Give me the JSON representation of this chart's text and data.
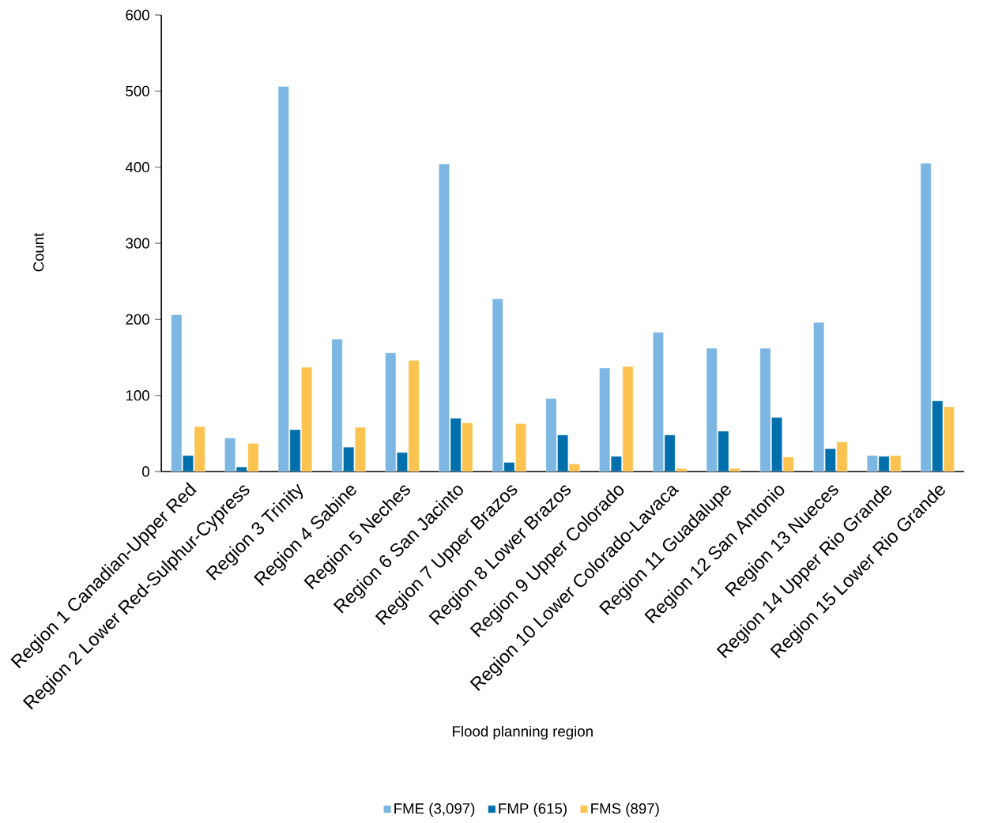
{
  "chart_data": {
    "type": "bar",
    "xlabel": "Flood planning region",
    "ylabel": "Count",
    "categories": [
      "Region 1 Canadian-Upper Red",
      "Region 2 Lower Red-Sulphur-Cypress",
      "Region 3 Trinity",
      "Region 4 Sabine",
      "Region 5 Neches",
      "Region 6 San Jacinto",
      "Region 7 Upper Brazos",
      "Region 8 Lower Brazos",
      "Region 9 Upper Colorado",
      "Region 10 Lower Colorado-Lavaca",
      "Region 11 Guadalupe",
      "Region 12 San Antonio",
      "Region 13 Nueces",
      "Region 14 Upper Rio Grande",
      "Region 15 Lower Rio Grande"
    ],
    "series": [
      {
        "name": "FME (3,097)",
        "color": "#7cb6e2",
        "values": [
          206,
          44,
          506,
          174,
          156,
          404,
          227,
          96,
          136,
          183,
          162,
          162,
          196,
          21,
          405
        ]
      },
      {
        "name": "FMP (615)",
        "color": "#006fac",
        "values": [
          21,
          6,
          55,
          32,
          25,
          70,
          12,
          48,
          20,
          48,
          53,
          71,
          30,
          20,
          93
        ]
      },
      {
        "name": "FMS (897)",
        "color": "#fdc350",
        "values": [
          59,
          37,
          137,
          58,
          146,
          64,
          63,
          10,
          138,
          4,
          4,
          19,
          39,
          21,
          85
        ]
      }
    ],
    "ylim": [
      0,
      600
    ],
    "yticks": [
      0,
      100,
      200,
      300,
      400,
      500,
      600
    ],
    "legend": "bottom",
    "grid": false
  }
}
